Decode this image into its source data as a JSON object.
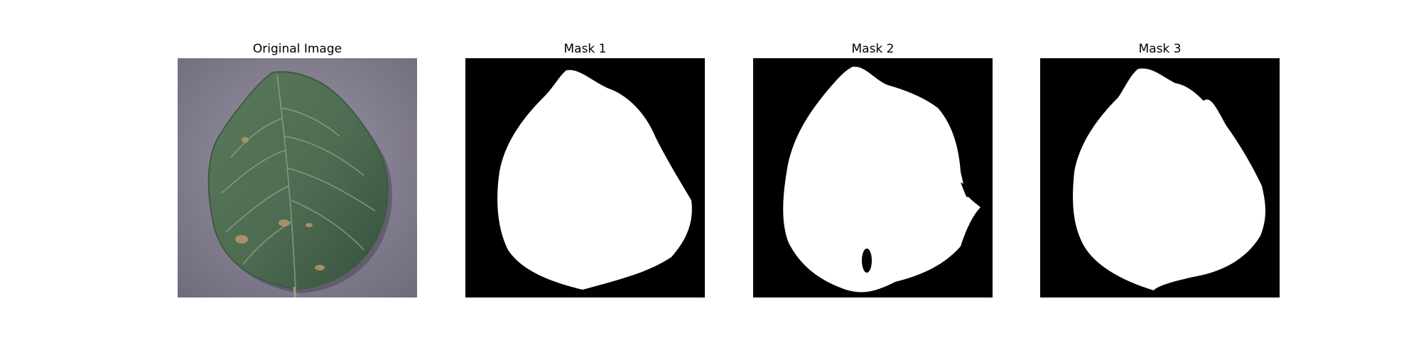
{
  "figure": {
    "background_color": "#ffffff",
    "panels": [
      {
        "title": "Original Image",
        "kind": "photo-leaf"
      },
      {
        "title": "Mask 1",
        "kind": "mask"
      },
      {
        "title": "Mask 2",
        "kind": "mask"
      },
      {
        "title": "Mask 3",
        "kind": "mask"
      }
    ]
  },
  "colors": {
    "mask_foreground": "#ffffff",
    "mask_background": "#000000",
    "photo_background": "#8a8494",
    "leaf_green": "#4f6b52",
    "leaf_vein": "#8fa38d",
    "leaf_spot": "#b8966e"
  }
}
